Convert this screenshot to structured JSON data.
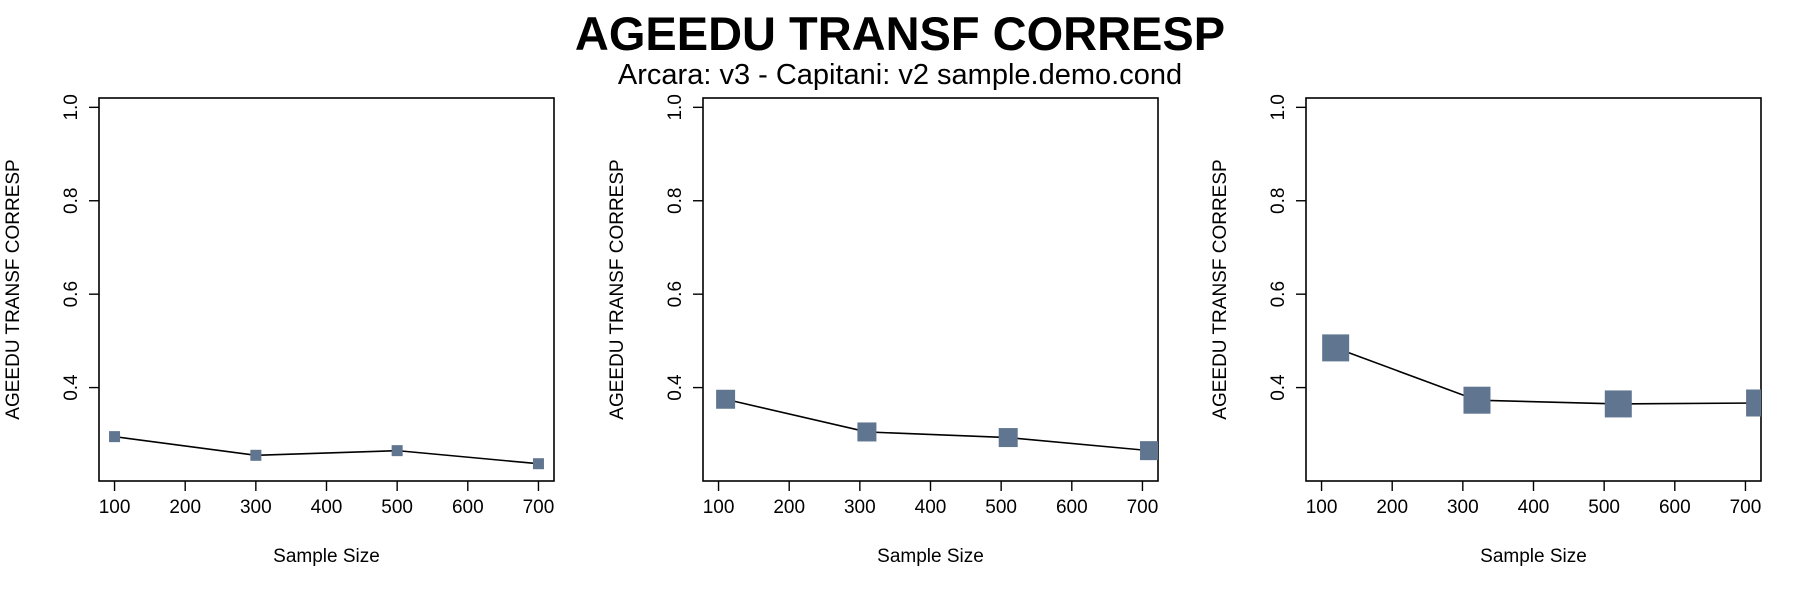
{
  "header": {
    "title": "AGEEDU TRANSF CORRESP",
    "subtitle": "Arcara: v3 - Capitani: v2 sample.demo.cond"
  },
  "colors": {
    "marker": "#5f7590",
    "line": "#000000",
    "axis": "#000000"
  },
  "chart_data": [
    {
      "type": "line",
      "title": "",
      "xlabel": "Sample Size",
      "ylabel": "AGEEDU TRANSF CORRESP",
      "xlim": [
        78,
        722
      ],
      "ylim": [
        0.2,
        1.02
      ],
      "xticks": [
        100,
        200,
        300,
        400,
        500,
        600,
        700
      ],
      "yticks": [
        0.4,
        0.6,
        0.8,
        1.0
      ],
      "ytick_labels": [
        "0.4",
        "0.6",
        "0.8",
        "1.0"
      ],
      "marker_size": "small",
      "x": [
        100,
        300,
        500,
        700
      ],
      "y": [
        0.295,
        0.255,
        0.265,
        0.237
      ]
    },
    {
      "type": "line",
      "title": "",
      "xlabel": "Sample Size",
      "ylabel": "AGEEDU TRANSF CORRESP",
      "xlim": [
        78,
        722
      ],
      "ylim": [
        0.2,
        1.02
      ],
      "xticks": [
        100,
        200,
        300,
        400,
        500,
        600,
        700
      ],
      "yticks": [
        0.4,
        0.6,
        0.8,
        1.0
      ],
      "ytick_labels": [
        "0.4",
        "0.6",
        "0.8",
        "1.0"
      ],
      "marker_size": "medium",
      "x": [
        110,
        310,
        510,
        710
      ],
      "y": [
        0.375,
        0.305,
        0.293,
        0.265
      ]
    },
    {
      "type": "line",
      "title": "",
      "xlabel": "Sample Size",
      "ylabel": "AGEEDU TRANSF CORRESP",
      "xlim": [
        78,
        722
      ],
      "ylim": [
        0.2,
        1.02
      ],
      "xticks": [
        100,
        200,
        300,
        400,
        500,
        600,
        700
      ],
      "yticks": [
        0.4,
        0.6,
        0.8,
        1.0
      ],
      "ytick_labels": [
        "0.4",
        "0.6",
        "0.8",
        "1.0"
      ],
      "marker_size": "large",
      "x": [
        120,
        320,
        520,
        720
      ],
      "y": [
        0.485,
        0.373,
        0.365,
        0.367
      ]
    }
  ]
}
